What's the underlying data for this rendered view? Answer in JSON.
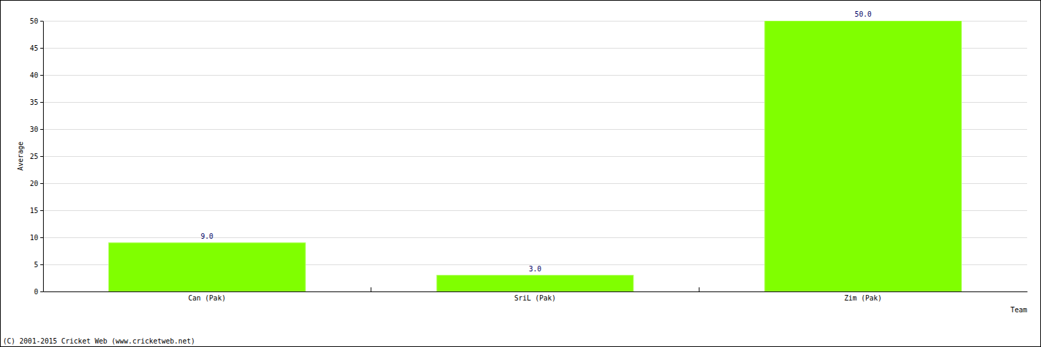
{
  "chart_data": {
    "type": "bar",
    "categories": [
      "Can (Pak)",
      "SriL (Pak)",
      "Zim (Pak)"
    ],
    "values": [
      9,
      3,
      50
    ],
    "value_labels": [
      "9.0",
      "3.0",
      "50.0"
    ],
    "data_labels": true,
    "color": "#80ff00",
    "x_label": "Team",
    "y_label": "Average",
    "ylim": [
      0,
      50
    ],
    "yticks": [
      0,
      5,
      10,
      15,
      20,
      25,
      30,
      35,
      40,
      45,
      50
    ],
    "grid": true,
    "annotations": [
      "(C) 2001-2015 Cricket Web (www.cricketweb.net)"
    ]
  }
}
